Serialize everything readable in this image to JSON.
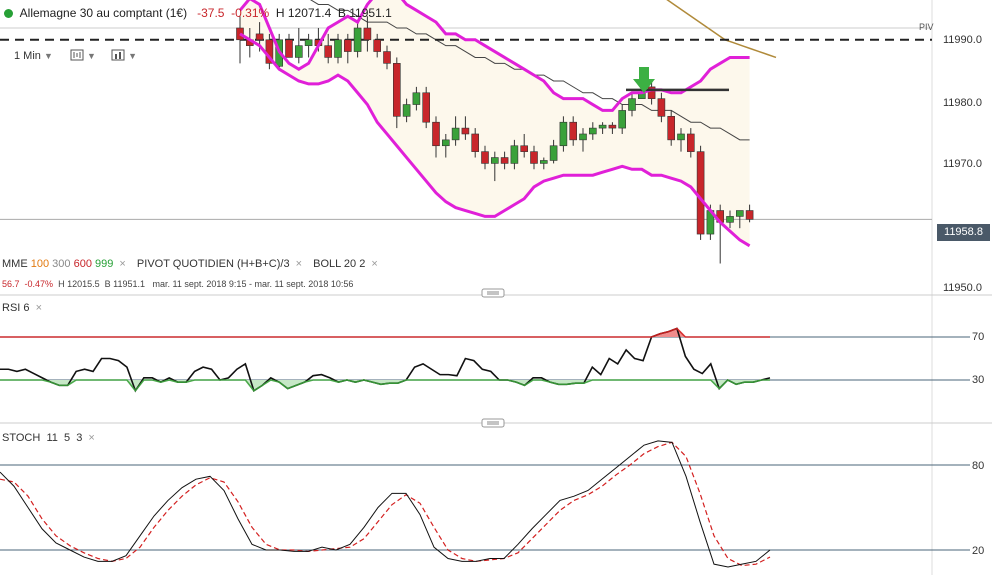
{
  "header": {
    "instrument": "Allemagne 30 au comptant (1€)",
    "change": "-37.5",
    "change_pct": "-0.31%",
    "high": "H 12071.4",
    "low": "B 11951.1"
  },
  "toolbar": {
    "interval": "1 Min"
  },
  "indicators": {
    "mme_label": "MME",
    "mme_100": "100",
    "mme_300": "300",
    "mme_600": "600",
    "mme_999": "999",
    "pivot_label": "PIVOT",
    "pivot_type": "QUOTIDIEN",
    "pivot_formula": "(H+B+C)/3",
    "boll_label": "BOLL",
    "boll_period": "20",
    "boll_dev": "2",
    "close_symbol": "×"
  },
  "subinfo": {
    "change": "56.7",
    "change_pct": "-0.47%",
    "high": "H 12015.5",
    "low": "B 11951.1",
    "range": "mar. 11 sept. 2018 9:15 - mar. 11 sept. 2018 10:56"
  },
  "rsi_label": {
    "name": "RSI",
    "period": "6"
  },
  "stoch_label": {
    "name": "STOCH",
    "k": "11",
    "d": "5",
    "slow": "3"
  },
  "price_axis": {
    "ticks": [
      "11990.0",
      "11980.0",
      "11970.0",
      "11950.0"
    ],
    "last_price": "11958.8",
    "pivot_tag": "PIV"
  },
  "rsi_axis": {
    "ticks": [
      "70",
      "30"
    ]
  },
  "stoch_axis": {
    "ticks": [
      "80",
      "20"
    ]
  },
  "colors": {
    "up": "#3aa13a",
    "down": "#c8262b",
    "boll": "#e020d8",
    "mme": "#b08a3a",
    "arrow": "#3cb043"
  },
  "chart_data": [
    {
      "type": "candlestick",
      "ylim": [
        11947.5,
        11992.0
      ],
      "pivot_level": 11990.0,
      "candles": [
        [
          11992,
          11994,
          11986,
          11990
        ],
        [
          11990,
          11992,
          11987,
          11989
        ],
        [
          11991,
          11993,
          11988,
          11990
        ],
        [
          11990,
          11991,
          11985,
          11986
        ],
        [
          11985.5,
          11991,
          11985,
          11990
        ],
        [
          11990,
          11991,
          11987,
          11987
        ],
        [
          11987,
          11992,
          11986,
          11989
        ],
        [
          11989,
          11991,
          11987,
          11990
        ],
        [
          11990,
          11992,
          11988,
          11989
        ],
        [
          11989,
          11991,
          11986,
          11987
        ],
        [
          11987,
          11991,
          11986,
          11990
        ],
        [
          11990,
          11991,
          11986,
          11988
        ],
        [
          11988,
          11993,
          11987,
          11992
        ],
        [
          11992,
          11994,
          11988,
          11990
        ],
        [
          11990,
          11991,
          11987,
          11988
        ],
        [
          11988,
          11989,
          11985,
          11986
        ],
        [
          11986,
          11987,
          11975,
          11977
        ],
        [
          11977,
          11980,
          11976,
          11979
        ],
        [
          11979,
          11982,
          11978,
          11981
        ],
        [
          11981,
          11982,
          11975,
          11976
        ],
        [
          11976,
          11977,
          11970,
          11972
        ],
        [
          11972,
          11974,
          11970,
          11973
        ],
        [
          11973,
          11977,
          11972,
          11975
        ],
        [
          11975,
          11977,
          11973,
          11974
        ],
        [
          11974,
          11975,
          11970,
          11971
        ],
        [
          11971,
          11972,
          11968,
          11969
        ],
        [
          11969,
          11971,
          11966,
          11970
        ],
        [
          11970,
          11971,
          11968,
          11969
        ],
        [
          11969,
          11973,
          11968,
          11972
        ],
        [
          11972,
          11974,
          11970,
          11971
        ],
        [
          11971,
          11972,
          11968,
          11969
        ],
        [
          11969,
          11970,
          11968,
          11969.5
        ],
        [
          11969.5,
          11973,
          11969,
          11972
        ],
        [
          11972,
          11977,
          11971,
          11976
        ],
        [
          11976,
          11977,
          11972,
          11973
        ],
        [
          11973,
          11975,
          11971,
          11974
        ],
        [
          11974,
          11976,
          11973,
          11975
        ],
        [
          11975,
          11976,
          11974,
          11975.5
        ],
        [
          11975.5,
          11976,
          11974,
          11975
        ],
        [
          11975,
          11979,
          11974,
          11978
        ],
        [
          11978,
          11981,
          11977,
          11980
        ],
        [
          11980,
          11982,
          11980,
          11981
        ],
        [
          11982,
          11983,
          11979,
          11980
        ],
        [
          11980,
          11981,
          11976,
          11977
        ],
        [
          11977,
          11978,
          11972,
          11973
        ],
        [
          11973,
          11975,
          11971,
          11974
        ],
        [
          11974,
          11975,
          11970,
          11971
        ],
        [
          11971,
          11972,
          11956,
          11957
        ],
        [
          11957,
          11962,
          11956,
          11961
        ],
        [
          11961,
          11962,
          11952,
          11959
        ],
        [
          11959,
          11961,
          11958,
          11960
        ],
        [
          11960,
          11961,
          11958,
          11961
        ],
        [
          11961,
          11962,
          11959,
          11959.5
        ]
      ],
      "bollinger": {
        "upper": [
          11995,
          11997,
          11996,
          11992,
          11988,
          11986,
          11985,
          11986,
          11989,
          11992,
          11993,
          11994,
          11993,
          11996,
          11998,
          11999,
          11998,
          11996,
          11995,
          11994,
          11993,
          11991,
          11991,
          11990,
          11990,
          11989,
          11988,
          11987,
          11986,
          11985,
          11984,
          11983,
          11981,
          11980,
          11980,
          11980,
          11979,
          11978,
          11978,
          11980,
          11981,
          11981,
          11981.5,
          11981.5,
          11981,
          11981,
          11982,
          11983,
          11985,
          11986,
          11987,
          11987,
          11987
        ],
        "lower": [
          11991,
          11990,
          11989,
          11987,
          11985,
          11984,
          11983,
          11982.5,
          11982.5,
          11983,
          11984,
          11983,
          11981,
          11979,
          11976,
          11974,
          11972,
          11970,
          11968,
          11966,
          11964,
          11962.5,
          11961.5,
          11961,
          11960.5,
          11960,
          11960,
          11961,
          11962,
          11963,
          11965,
          11966,
          11966.5,
          11967,
          11967,
          11967,
          11967,
          11967.5,
          11968,
          11968.5,
          11968,
          11968,
          11967,
          11967,
          11966.5,
          11966,
          11965,
          11963,
          11961,
          11959,
          11957.5,
          11956,
          11955
        ]
      },
      "mme": [
        11999,
        11998,
        11998,
        11998,
        11998,
        11998,
        11997,
        11997,
        11996,
        11996,
        11995,
        11995,
        11994,
        11993,
        11993,
        11993,
        11992,
        11992,
        11991,
        11991,
        11990,
        11989,
        11989,
        11988,
        11987,
        11987,
        11986,
        11986,
        11985,
        11985,
        11984,
        11984,
        11983,
        11983,
        11982,
        11981,
        11981,
        11980,
        11980,
        11979,
        11979,
        11979,
        11978,
        11978,
        11978,
        11977,
        11976,
        11976,
        11975,
        11975,
        11974,
        11973,
        11973
      ],
      "mme_long": [
        11999,
        11998.5,
        11998,
        11997,
        11996,
        11995,
        11994,
        11993,
        11992,
        11991,
        11990,
        11989.5,
        11989,
        11988.5,
        11988,
        11987.5,
        11987
      ],
      "signal_arrow_index": 40,
      "signal_level": 11981.5
    },
    {
      "type": "line",
      "name": "RSI",
      "ylim": [
        0,
        100
      ],
      "levels": [
        70,
        30
      ],
      "values": [
        40,
        40,
        38,
        40,
        36,
        32,
        28,
        25,
        25,
        38,
        40,
        38,
        50,
        50,
        48,
        42,
        20,
        32,
        32,
        28,
        32,
        28,
        28,
        38,
        42,
        40,
        30,
        32,
        40,
        45,
        20,
        25,
        32,
        28,
        22,
        25,
        28,
        34,
        35,
        32,
        28,
        30,
        28,
        30,
        28,
        26,
        27,
        27,
        30,
        42,
        45,
        40,
        35,
        35,
        34,
        50,
        48,
        40,
        38,
        30,
        30,
        28,
        25,
        32,
        32,
        28,
        26,
        26,
        27,
        27,
        42,
        35,
        50,
        45,
        58,
        50,
        48,
        70,
        73,
        75,
        78,
        52,
        40,
        36,
        45,
        22,
        30,
        26,
        28,
        28,
        30,
        32
      ]
    },
    {
      "type": "line",
      "name": "STOCH",
      "ylim": [
        0,
        100
      ],
      "levels": [
        80,
        20
      ],
      "k": [
        75,
        65,
        50,
        35,
        25,
        20,
        15,
        12,
        12,
        16,
        30,
        44,
        55,
        64,
        70,
        72,
        62,
        42,
        24,
        20,
        20,
        19,
        19,
        22,
        20,
        24,
        36,
        50,
        60,
        60,
        45,
        22,
        14,
        12,
        12,
        14,
        14,
        24,
        35,
        45,
        55,
        58,
        62,
        70,
        78,
        86,
        94,
        97,
        96,
        72,
        40,
        10,
        8,
        10,
        12,
        20
      ],
      "d": [
        70,
        68,
        58,
        42,
        30,
        23,
        18,
        14,
        12,
        14,
        22,
        36,
        48,
        58,
        66,
        71,
        68,
        54,
        36,
        24,
        20,
        20,
        19,
        20,
        21,
        22,
        28,
        40,
        52,
        59,
        53,
        36,
        20,
        14,
        12,
        13,
        14,
        18,
        28,
        38,
        48,
        55,
        59,
        65,
        73,
        80,
        88,
        93,
        96,
        86,
        60,
        30,
        14,
        9,
        10,
        15
      ]
    }
  ]
}
